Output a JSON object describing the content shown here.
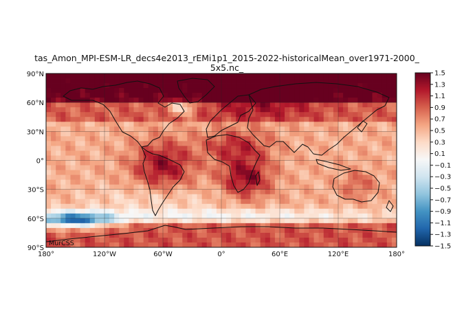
{
  "title": {
    "line1": "tas_Amon_MPI-ESM-LR_decs4e2013_rEMi1p1_2015-2022-historicalMean_over1971-2000_",
    "line2": "5x5.nc_"
  },
  "watermark": "MurCSS",
  "map": {
    "projection": "equirectangular",
    "grid": true,
    "lat_labels": [
      "90°N",
      "60°N",
      "30°N",
      "0°",
      "30°S",
      "60°S",
      "90°S"
    ],
    "lon_labels": [
      "180°",
      "120°W",
      "60°W",
      "0°",
      "60°E",
      "120°E",
      "180°"
    ],
    "field_description_colors": {
      "warm": "#8b0f24",
      "neutral": "#f7f2ee",
      "cool": "#2c6fb5"
    }
  },
  "colorbar": {
    "ticks": [
      "1.5",
      "1.3",
      "1.1",
      "0.9",
      "0.7",
      "0.5",
      "0.3",
      "0.1",
      "−0.1",
      "−0.3",
      "−0.5",
      "−0.7",
      "−0.9",
      "−1.1",
      "−1.3",
      "−1.5"
    ],
    "vmin": -1.5,
    "vmax": 1.5,
    "colors": [
      "#053061",
      "#2166ac",
      "#4393c3",
      "#92c5de",
      "#d1e5f0",
      "#f7f7f7",
      "#fddbc7",
      "#f4a582",
      "#d6604d",
      "#b2182b",
      "#67001f"
    ]
  }
}
